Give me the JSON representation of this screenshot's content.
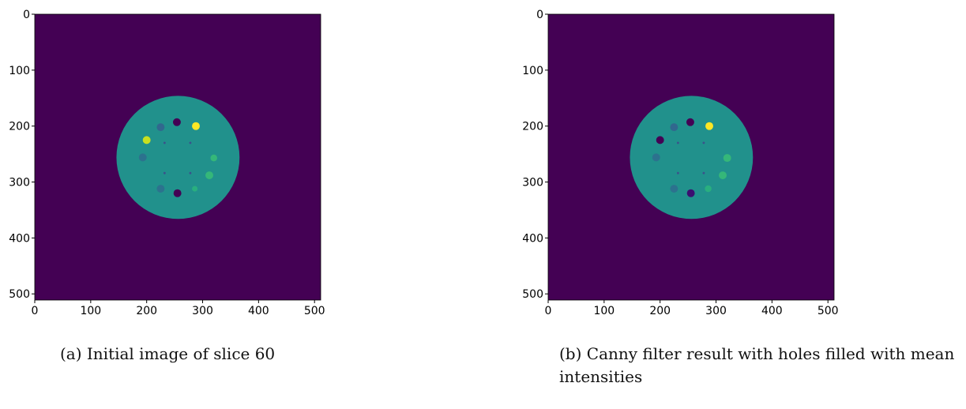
{
  "figures": [
    {
      "caption": "(a) Initial image of slice 60",
      "chart_data": {
        "type": "heatmap",
        "title": "",
        "xlabel": "",
        "ylabel": "",
        "xlim": [
          0,
          511
        ],
        "ylim": [
          511,
          0
        ],
        "x_ticks": [
          "0",
          "100",
          "200",
          "300",
          "400",
          "500"
        ],
        "y_ticks": [
          "0",
          "100",
          "200",
          "300",
          "400",
          "500"
        ],
        "background_color": "#440154",
        "phantom": {
          "cx": 256,
          "cy": 256,
          "r": 110,
          "color": "#21918c"
        },
        "inserts": [
          {
            "x": 254,
            "y": 193,
            "r": 7,
            "color": "#440154"
          },
          {
            "x": 288,
            "y": 200,
            "r": 7,
            "color": "#fde725"
          },
          {
            "x": 225,
            "y": 202,
            "r": 7,
            "color": "#31688e"
          },
          {
            "x": 200,
            "y": 225,
            "r": 7,
            "color": "#c8e020"
          },
          {
            "x": 193,
            "y": 256,
            "r": 7,
            "color": "#2c728e"
          },
          {
            "x": 320,
            "y": 257,
            "r": 6,
            "color": "#35b779"
          },
          {
            "x": 312,
            "y": 288,
            "r": 7,
            "color": "#35b779"
          },
          {
            "x": 225,
            "y": 312,
            "r": 7,
            "color": "#2c728e"
          },
          {
            "x": 286,
            "y": 312,
            "r": 5,
            "color": "#29af7f"
          },
          {
            "x": 255,
            "y": 320,
            "r": 7,
            "color": "#440154"
          },
          {
            "x": 232,
            "y": 230,
            "r": 2,
            "color": "#3b528b"
          },
          {
            "x": 278,
            "y": 230,
            "r": 2,
            "color": "#3b528b"
          },
          {
            "x": 232,
            "y": 284,
            "r": 2,
            "color": "#3b528b"
          },
          {
            "x": 278,
            "y": 284,
            "r": 2,
            "color": "#3b528b"
          }
        ]
      }
    },
    {
      "caption": "(b) Canny filter result with holes filled with mean intensities",
      "chart_data": {
        "type": "heatmap",
        "title": "",
        "xlabel": "",
        "ylabel": "",
        "xlim": [
          0,
          511
        ],
        "ylim": [
          511,
          0
        ],
        "x_ticks": [
          "0",
          "100",
          "200",
          "300",
          "400",
          "500"
        ],
        "y_ticks": [
          "0",
          "100",
          "200",
          "300",
          "400",
          "500"
        ],
        "background_color": "#440154",
        "phantom": {
          "cx": 256,
          "cy": 256,
          "r": 110,
          "color": "#21918c"
        },
        "inserts": [
          {
            "x": 254,
            "y": 193,
            "r": 7,
            "color": "#440154"
          },
          {
            "x": 288,
            "y": 200,
            "r": 7,
            "color": "#fde725"
          },
          {
            "x": 225,
            "y": 202,
            "r": 7,
            "color": "#31688e"
          },
          {
            "x": 200,
            "y": 225,
            "r": 7,
            "color": "#440154"
          },
          {
            "x": 193,
            "y": 256,
            "r": 7,
            "color": "#2c728e"
          },
          {
            "x": 320,
            "y": 257,
            "r": 7,
            "color": "#35b779"
          },
          {
            "x": 312,
            "y": 288,
            "r": 7,
            "color": "#35b779"
          },
          {
            "x": 225,
            "y": 312,
            "r": 7,
            "color": "#2c728e"
          },
          {
            "x": 286,
            "y": 312,
            "r": 6,
            "color": "#29af7f"
          },
          {
            "x": 255,
            "y": 320,
            "r": 7,
            "color": "#3b0f70"
          },
          {
            "x": 232,
            "y": 230,
            "r": 2,
            "color": "#3b528b"
          },
          {
            "x": 278,
            "y": 230,
            "r": 2,
            "color": "#3b528b"
          },
          {
            "x": 232,
            "y": 284,
            "r": 2,
            "color": "#3b528b"
          },
          {
            "x": 278,
            "y": 284,
            "r": 2,
            "color": "#3b528b"
          }
        ]
      }
    }
  ]
}
